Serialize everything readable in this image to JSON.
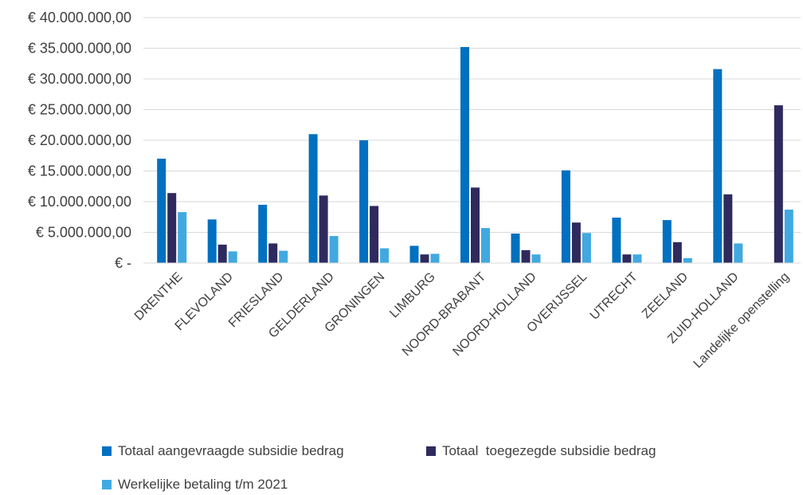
{
  "chart_data": {
    "type": "bar",
    "title": "",
    "xlabel": "",
    "ylabel": "",
    "ylim": [
      0,
      40000000
    ],
    "yticks": [
      0,
      5000000,
      10000000,
      15000000,
      20000000,
      25000000,
      30000000,
      35000000,
      40000000
    ],
    "ytick_labels": [
      "€ -",
      "€ 5.000.000,00",
      "€ 10.000.000,00",
      "€ 15.000.000,00",
      "€ 20.000.000,00",
      "€ 25.000.000,00",
      "€ 30.000.000,00",
      "€ 35.000.000,00",
      "€ 40.000.000,00"
    ],
    "grid": true,
    "legend_position": "bottom",
    "categories": [
      "DRENTHE",
      "FLEVOLAND",
      "FRIESLAND",
      "GELDERLAND",
      "GRONINGEN",
      "LIMBURG",
      "NOORD-BRABANT",
      "NOORD-HOLLAND",
      "OVERIJSSEL",
      "UTRECHT",
      "ZEELAND",
      "ZUID-HOLLAND",
      "Landelijke openstelling"
    ],
    "series": [
      {
        "name": "Totaal aangevraagde subsidie bedrag",
        "color": "#0070C0",
        "values": [
          17000000,
          7100000,
          9500000,
          21000000,
          20000000,
          2800000,
          35200000,
          4800000,
          15100000,
          7400000,
          7000000,
          31600000,
          0
        ]
      },
      {
        "name": "Totaal  toegezegde subsidie bedrag",
        "color": "#2E2A5E",
        "values": [
          11400000,
          3000000,
          3200000,
          11000000,
          9300000,
          1400000,
          12300000,
          2100000,
          6600000,
          1400000,
          3400000,
          11200000,
          25700000
        ]
      },
      {
        "name": "Werkelijke betaling t/m 2021",
        "color": "#41A9E0",
        "values": [
          8300000,
          1900000,
          2000000,
          4400000,
          2400000,
          1500000,
          5700000,
          1400000,
          4900000,
          1400000,
          800000,
          3200000,
          8700000
        ]
      }
    ]
  }
}
